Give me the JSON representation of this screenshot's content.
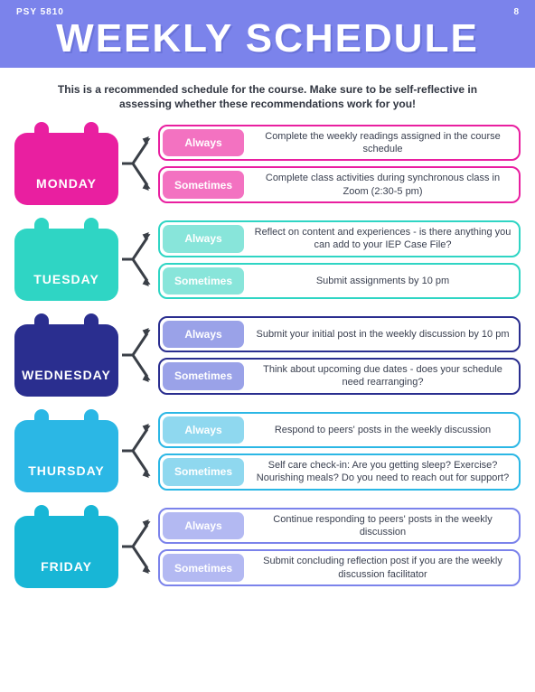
{
  "header": {
    "course_code": "PSY 5810",
    "page_number": "8",
    "title": "WEEKLY SCHEDULE"
  },
  "intro": "This is a recommended schedule for the course. Make sure to be self-reflective in assessing whether these recommendations work for you!",
  "arrow_color": "#3a3f47",
  "days": [
    {
      "name": "MONDAY",
      "cal_color": "#e91fa0",
      "border_color": "#e91fa0",
      "tag_always_bg": "#f372c1",
      "tag_sometimes_bg": "#f372c1",
      "always": "Complete the weekly readings assigned in the course schedule",
      "sometimes": "Complete class activities during synchronous class in Zoom (2:30-5 pm)"
    },
    {
      "name": "TUESDAY",
      "cal_color": "#2fd5c4",
      "border_color": "#2fd5c4",
      "tag_always_bg": "#88e5da",
      "tag_sometimes_bg": "#88e5da",
      "always": "Reflect on content and experiences - is there anything you can add to your IEP Case File?",
      "sometimes": "Submit assignments by 10 pm"
    },
    {
      "name": "WEDNESDAY",
      "cal_color": "#2a2e8f",
      "border_color": "#2a2e8f",
      "tag_always_bg": "#9aa2e8",
      "tag_sometimes_bg": "#9aa2e8",
      "always": "Submit your initial post in the weekly discussion by 10 pm",
      "sometimes": "Think about upcoming due dates - does your schedule need rearranging?"
    },
    {
      "name": "THURSDAY",
      "cal_color": "#2bb7e5",
      "border_color": "#2bb7e5",
      "tag_always_bg": "#8fd8ef",
      "tag_sometimes_bg": "#8fd8ef",
      "always": "Respond to peers' posts in the weekly discussion",
      "sometimes": "Self care check-in: Are you getting sleep? Exercise? Nourishing meals? Do you need to reach out for support?"
    },
    {
      "name": "FRIDAY",
      "cal_color": "#18b6d6",
      "border_color": "#7b83eb",
      "tag_always_bg": "#b3b9f2",
      "tag_sometimes_bg": "#b3b9f2",
      "always": "Continue responding to peers' posts in the weekly discussion",
      "sometimes": "Submit concluding reflection post if you are the weekly discussion facilitator"
    }
  ],
  "labels": {
    "always": "Always",
    "sometimes": "Sometimes"
  }
}
